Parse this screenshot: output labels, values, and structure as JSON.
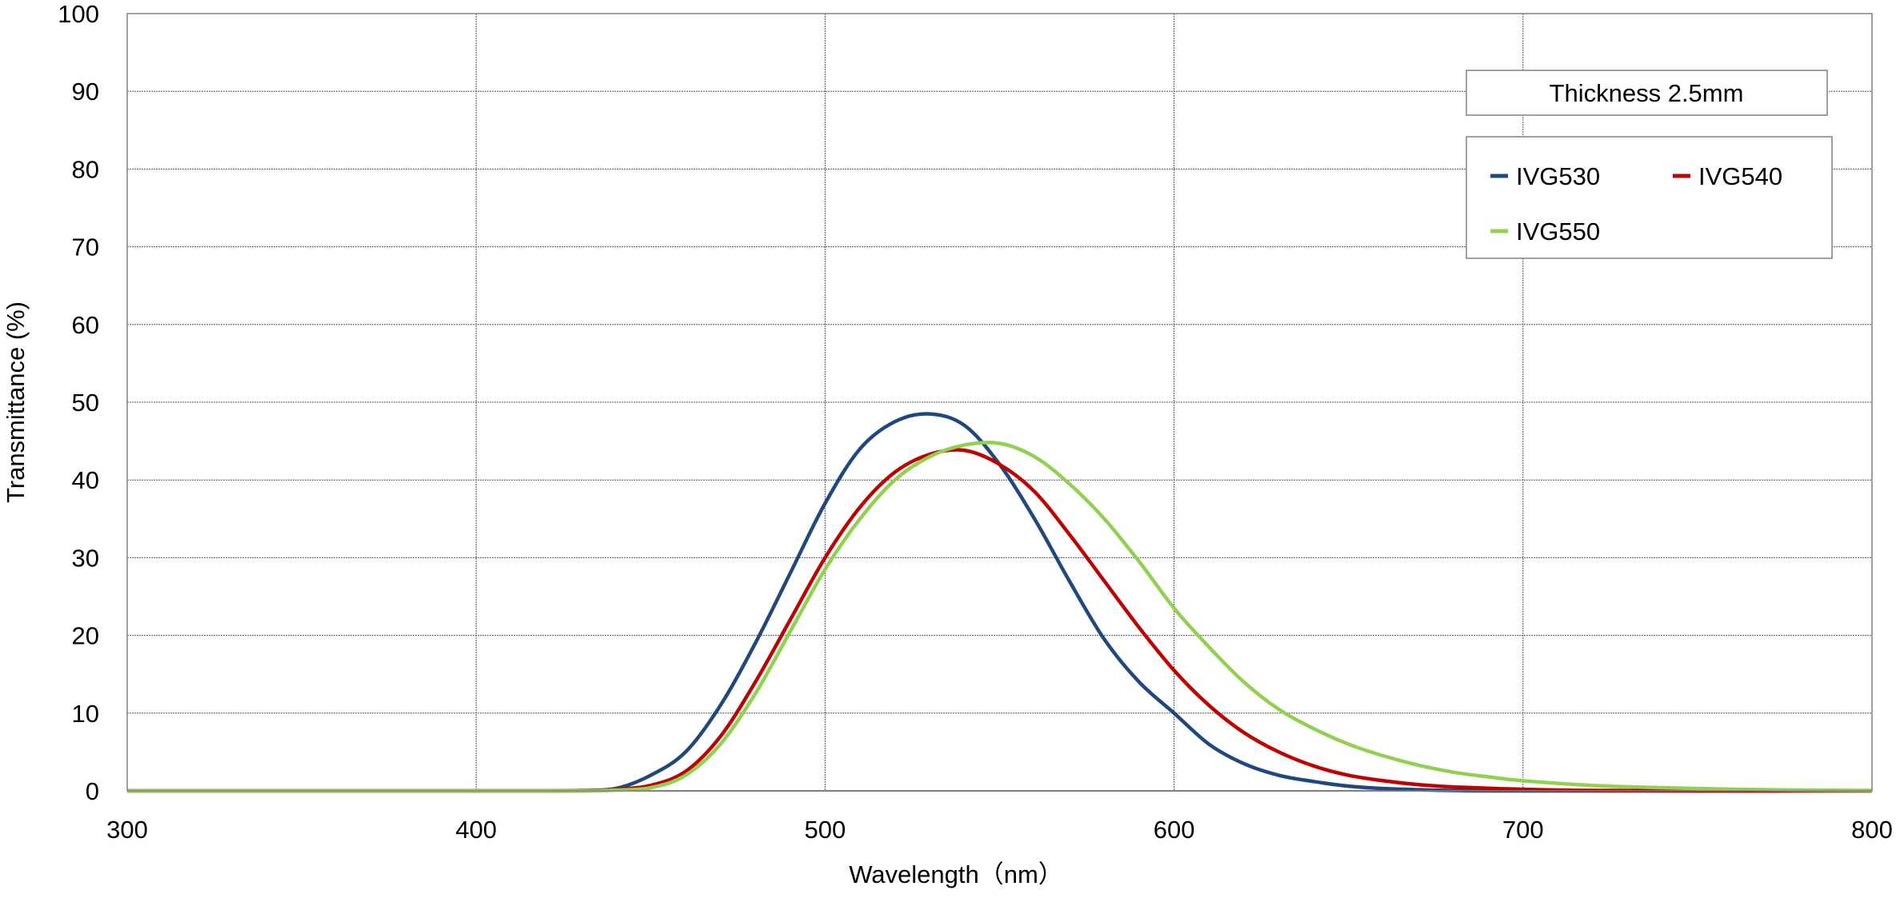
{
  "chart_data": {
    "type": "line",
    "title": "",
    "xlabel": "Wavelength（nm）",
    "ylabel": "Transmittance (%)",
    "xlim": [
      300,
      800
    ],
    "ylim": [
      0,
      100
    ],
    "xticks": [
      300,
      400,
      500,
      600,
      700,
      800
    ],
    "yticks": [
      0,
      10,
      20,
      30,
      40,
      50,
      60,
      70,
      80,
      90,
      100
    ],
    "grid": true,
    "legend_position": "top-right",
    "annotation": "Thickness  2.5mm",
    "series": [
      {
        "name": "IVG530",
        "color": "#1f497d",
        "x": [
          300,
          400,
          420,
          430,
          440,
          450,
          460,
          470,
          480,
          490,
          500,
          510,
          520,
          530,
          540,
          550,
          560,
          570,
          580,
          590,
          600,
          610,
          620,
          630,
          640,
          650,
          660,
          680,
          700,
          800
        ],
        "y": [
          0,
          0,
          0,
          0.05,
          0.3,
          2,
          5,
          11,
          19,
          28,
          37,
          44,
          47.5,
          48.5,
          47,
          42,
          35,
          27,
          19.5,
          14,
          10,
          6,
          3.5,
          2,
          1.2,
          0.6,
          0.3,
          0.05,
          0,
          0
        ]
      },
      {
        "name": "IVG540",
        "color": "#c00000",
        "x": [
          300,
          400,
          430,
          440,
          450,
          460,
          470,
          480,
          490,
          500,
          510,
          520,
          530,
          540,
          550,
          560,
          570,
          580,
          590,
          600,
          610,
          620,
          630,
          640,
          650,
          660,
          670,
          680,
          700,
          720,
          750,
          800
        ],
        "y": [
          0,
          0,
          0,
          0.2,
          0.7,
          2.5,
          7,
          14,
          22,
          30,
          36.5,
          41,
          43.3,
          43.8,
          42,
          38.5,
          33,
          27,
          21,
          15.5,
          11,
          7.5,
          5,
          3.2,
          2,
          1.3,
          0.8,
          0.5,
          0.2,
          0.05,
          0,
          0
        ]
      },
      {
        "name": "IVG550",
        "color": "#92d050",
        "x": [
          300,
          400,
          430,
          440,
          450,
          460,
          470,
          480,
          490,
          500,
          510,
          520,
          530,
          540,
          550,
          560,
          570,
          580,
          590,
          600,
          610,
          620,
          630,
          640,
          650,
          660,
          670,
          680,
          690,
          700,
          720,
          740,
          760,
          780,
          800
        ],
        "y": [
          0,
          0,
          0,
          0.1,
          0.4,
          2,
          6,
          12.5,
          20.5,
          28.5,
          35,
          40,
          43,
          44.5,
          44.7,
          43,
          39.5,
          35,
          29.5,
          23.5,
          18.5,
          14,
          10.5,
          8,
          6,
          4.5,
          3.3,
          2.4,
          1.8,
          1.3,
          0.7,
          0.4,
          0.2,
          0.1,
          0.05
        ]
      }
    ]
  }
}
